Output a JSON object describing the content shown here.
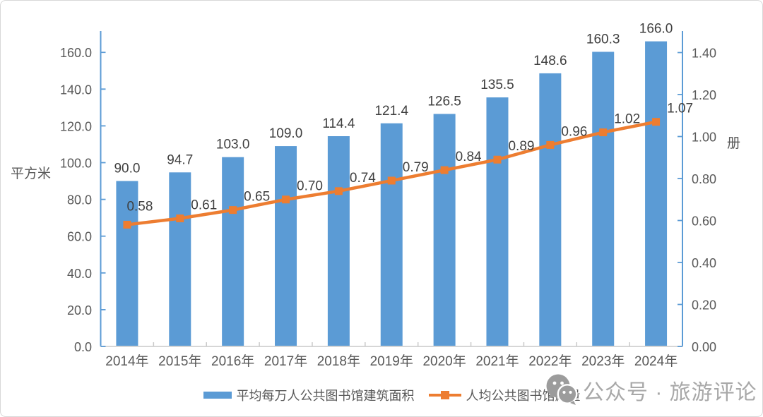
{
  "chart_data": {
    "type": "combo-bar-line",
    "categories": [
      "2014年",
      "2015年",
      "2016年",
      "2017年",
      "2018年",
      "2019年",
      "2020年",
      "2021年",
      "2022年",
      "2023年",
      "2024年"
    ],
    "series": [
      {
        "name": "平均每万人公共图书馆建筑面积",
        "type": "bar",
        "axis": "left",
        "color": "#5B9BD5",
        "values": [
          90.0,
          94.7,
          103.0,
          109.0,
          114.4,
          121.4,
          126.5,
          135.5,
          148.6,
          160.3,
          166.0
        ],
        "labels": [
          "90.0",
          "94.7",
          "103.0",
          "109.0",
          "114.4",
          "121.4",
          "126.5",
          "135.5",
          "148.6",
          "160.3",
          "166.0"
        ]
      },
      {
        "name": "人均公共图书馆藏量",
        "type": "line",
        "axis": "right",
        "color": "#ED7D31",
        "values": [
          0.58,
          0.61,
          0.65,
          0.7,
          0.74,
          0.79,
          0.84,
          0.89,
          0.96,
          1.02,
          1.07
        ],
        "labels": [
          "0.58",
          "0.61",
          "0.65",
          "0.70",
          "0.74",
          "0.79",
          "0.84",
          "0.89",
          "0.96",
          "1.02",
          "1.07"
        ]
      }
    ],
    "left_axis": {
      "title": "平方米",
      "tick_labels": [
        "0.0",
        "20.0",
        "40.0",
        "60.0",
        "80.0",
        "100.0",
        "120.0",
        "140.0",
        "160.0"
      ],
      "tick_values": [
        0,
        20,
        40,
        60,
        80,
        100,
        120,
        140,
        160
      ],
      "min": 0,
      "max": 171.6
    },
    "right_axis": {
      "title": "册",
      "tick_labels": [
        "0.00",
        "0.20",
        "0.40",
        "0.60",
        "0.80",
        "1.00",
        "1.20",
        "1.40"
      ],
      "tick_values": [
        0,
        0.2,
        0.4,
        0.6,
        0.8,
        1.0,
        1.2,
        1.4
      ],
      "min": 0,
      "max": 1.5025
    },
    "grid": false,
    "legend_position": "bottom",
    "title": ""
  },
  "colors": {
    "bar": "#5B9BD5",
    "line": "#ED7D31",
    "vertical_axis": "#5B9BD5",
    "horizontal_axis": "#D6D6D6",
    "x_tick": "#C9C9C9",
    "tick_text": "#595959",
    "data_label_text": "#3F3F3F",
    "watermark": "#A8A8A8"
  },
  "watermark": {
    "icon": "wechat-icon",
    "text": "公众号 · 旅游评论"
  }
}
